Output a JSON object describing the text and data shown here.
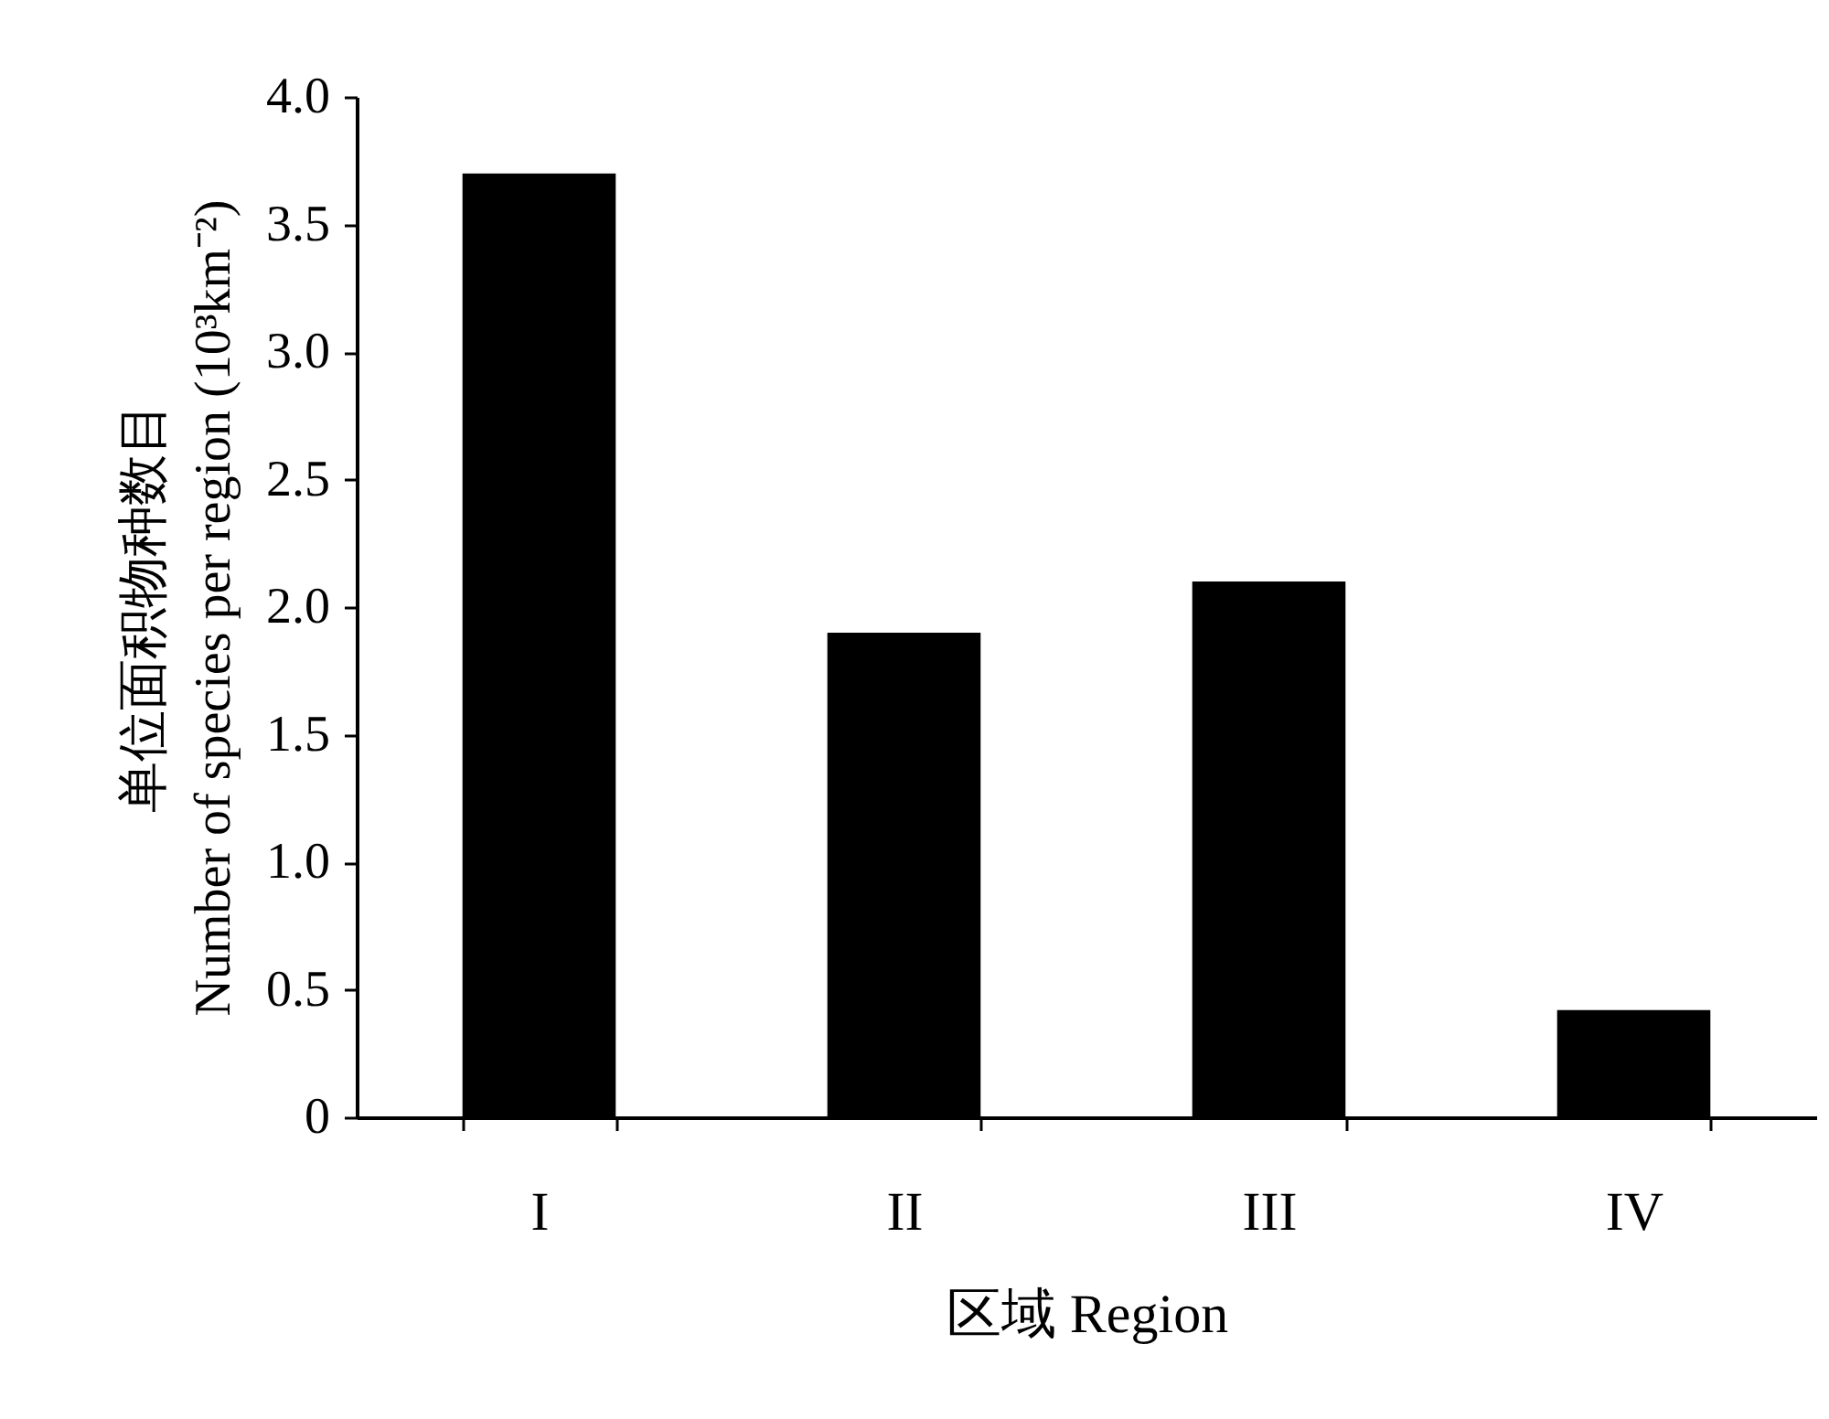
{
  "chart_data": {
    "type": "bar",
    "xlabel": "区域 Region",
    "ylabel": "单位面积物种数目\nNumber of species per region (10³km⁻²)",
    "categories": [
      "I",
      "II",
      "III",
      "IV"
    ],
    "values": [
      3.7,
      1.9,
      2.1,
      0.42
    ],
    "color": "#000000",
    "ylim": [
      0,
      4
    ],
    "yticks": [
      0,
      0.5,
      {
        "value": 1,
        "label": "1.0"
      },
      1.5,
      {
        "value": 2,
        "label": "2.0"
      },
      2.5,
      {
        "value": 3,
        "label": "3.0"
      },
      3.5,
      {
        "value": 4,
        "label": "4.0"
      }
    ],
    "grid": false
  }
}
